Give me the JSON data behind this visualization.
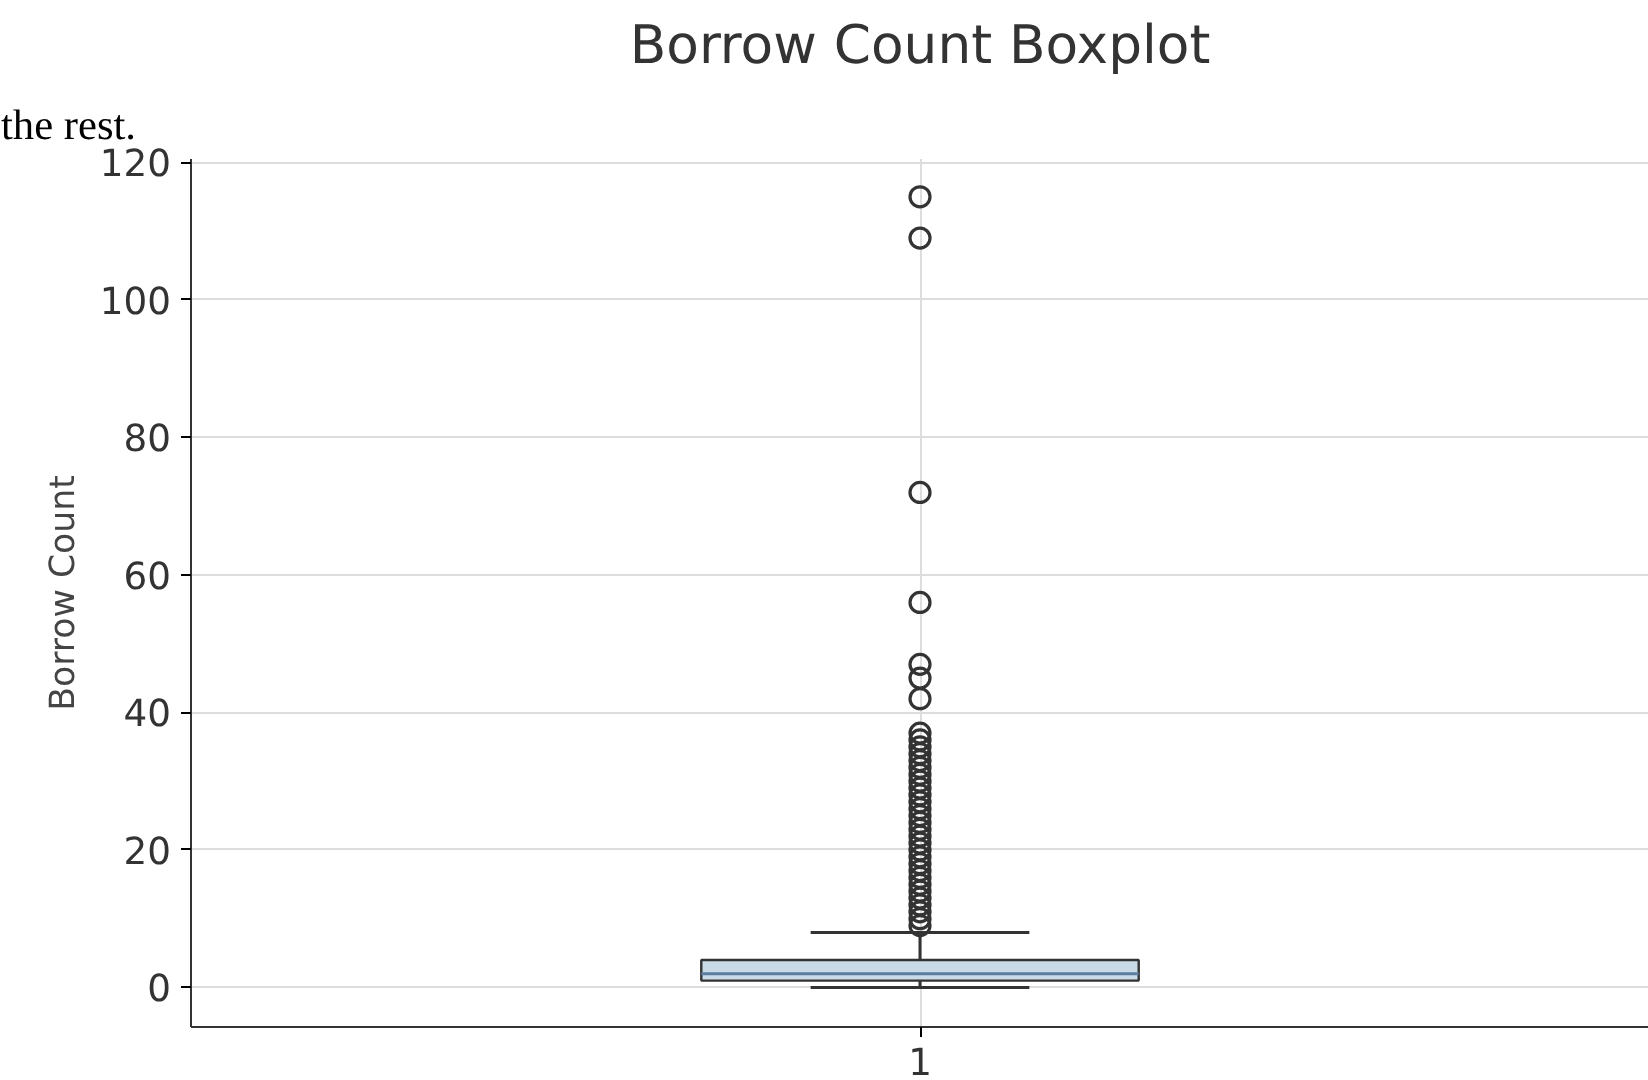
{
  "chart_data": {
    "type": "box",
    "title": "Borrow Count Boxplot",
    "ylabel": "Borrow Count",
    "categories": [
      "1"
    ],
    "boxes": [
      {
        "low": 0,
        "q1": 1,
        "median": 2,
        "q3": 4,
        "high": 8,
        "outliers": [
          9,
          10,
          11,
          12,
          13,
          14,
          15,
          16,
          17,
          18,
          19,
          20,
          21,
          22,
          23,
          24,
          25,
          26,
          27,
          28,
          29,
          30,
          31,
          32,
          33,
          34,
          35,
          36,
          37,
          42,
          45,
          47,
          56,
          72,
          109,
          115
        ]
      }
    ],
    "color": "#c9dbe8",
    "ylim": [
      -5.75,
      120.5
    ],
    "yticks": [
      0,
      20,
      40,
      60,
      80,
      100,
      120
    ],
    "grid": true,
    "annotations": [
      "the rest."
    ]
  }
}
